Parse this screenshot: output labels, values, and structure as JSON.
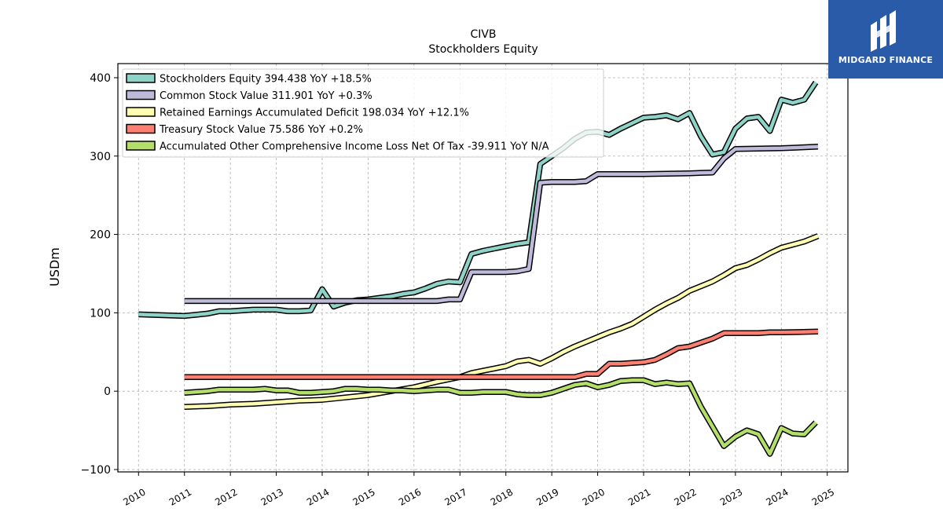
{
  "logo": {
    "text": "MIDGARD FINANCE"
  },
  "chart_data": {
    "type": "line",
    "title": "CIVB",
    "subtitle": "Stockholders  Equity",
    "xlabel": "",
    "ylabel": "USDm",
    "xlim": [
      2009.55,
      2025.45
    ],
    "ylim": [
      -103,
      418
    ],
    "yticks": [
      -100,
      0,
      100,
      200,
      300,
      400
    ],
    "xticks": [
      "2010",
      "2011",
      "2012",
      "2013",
      "2014",
      "2015",
      "2016",
      "2017",
      "2018",
      "2019",
      "2020",
      "2021",
      "2022",
      "2023",
      "2024",
      "2025"
    ],
    "grid": true,
    "legend_position": "top-left",
    "series": [
      {
        "name": "Stockholders Equity  394.438 YoY +18.5%",
        "color": "#8dd3c7",
        "points": [
          [
            2010.0,
            98
          ],
          [
            2011.0,
            96
          ],
          [
            2011.5,
            99
          ],
          [
            2011.75,
            102
          ],
          [
            2012.0,
            102
          ],
          [
            2012.5,
            104
          ],
          [
            2013.0,
            104
          ],
          [
            2013.25,
            102
          ],
          [
            2013.5,
            102
          ],
          [
            2013.75,
            103
          ],
          [
            2014.0,
            130
          ],
          [
            2014.25,
            108
          ],
          [
            2014.5,
            113
          ],
          [
            2014.75,
            116
          ],
          [
            2015.0,
            117
          ],
          [
            2015.25,
            119
          ],
          [
            2015.5,
            121
          ],
          [
            2015.75,
            124
          ],
          [
            2016.0,
            126
          ],
          [
            2016.25,
            131
          ],
          [
            2016.5,
            137
          ],
          [
            2016.75,
            140
          ],
          [
            2017.0,
            139
          ],
          [
            2017.25,
            175
          ],
          [
            2017.5,
            179
          ],
          [
            2017.75,
            182
          ],
          [
            2018.0,
            185
          ],
          [
            2018.25,
            188
          ],
          [
            2018.5,
            190
          ],
          [
            2018.75,
            290
          ],
          [
            2019.0,
            300
          ],
          [
            2019.25,
            310
          ],
          [
            2019.5,
            322
          ],
          [
            2019.75,
            330
          ],
          [
            2020.0,
            331
          ],
          [
            2020.25,
            327
          ],
          [
            2020.5,
            335
          ],
          [
            2020.75,
            342
          ],
          [
            2021.0,
            349
          ],
          [
            2021.25,
            350
          ],
          [
            2021.5,
            352
          ],
          [
            2021.75,
            347
          ],
          [
            2022.0,
            355
          ],
          [
            2022.25,
            325
          ],
          [
            2022.5,
            302
          ],
          [
            2022.75,
            305
          ],
          [
            2023.0,
            335
          ],
          [
            2023.25,
            348
          ],
          [
            2023.5,
            350
          ],
          [
            2023.75,
            332
          ],
          [
            2024.0,
            372
          ],
          [
            2024.25,
            368
          ],
          [
            2024.5,
            372
          ],
          [
            2024.75,
            394
          ]
        ]
      },
      {
        "name": "Common Stock Value  311.901 YoY +0.3%",
        "color": "#bebada",
        "points": [
          [
            2011.0,
            115
          ],
          [
            2012.0,
            115
          ],
          [
            2013.0,
            115
          ],
          [
            2014.0,
            115
          ],
          [
            2015.0,
            115
          ],
          [
            2016.0,
            115
          ],
          [
            2016.5,
            115
          ],
          [
            2016.75,
            117
          ],
          [
            2017.0,
            117
          ],
          [
            2017.25,
            152
          ],
          [
            2018.0,
            152
          ],
          [
            2018.25,
            153
          ],
          [
            2018.5,
            156
          ],
          [
            2018.75,
            266
          ],
          [
            2019.0,
            267
          ],
          [
            2019.5,
            267
          ],
          [
            2019.75,
            268
          ],
          [
            2020.0,
            277
          ],
          [
            2021.0,
            277
          ],
          [
            2022.0,
            278
          ],
          [
            2022.5,
            279
          ],
          [
            2022.75,
            297
          ],
          [
            2023.0,
            309
          ],
          [
            2024.0,
            310
          ],
          [
            2024.8,
            312
          ]
        ]
      },
      {
        "name": "Retained Earnings Accumulated Deficit  198.034 YoY +12.1%",
        "color": "#ffffb3",
        "points": [
          [
            2011.0,
            -20
          ],
          [
            2011.5,
            -19
          ],
          [
            2012.0,
            -17
          ],
          [
            2012.5,
            -16
          ],
          [
            2013.0,
            -14
          ],
          [
            2013.5,
            -12
          ],
          [
            2014.0,
            -11
          ],
          [
            2014.5,
            -8
          ],
          [
            2015.0,
            -5
          ],
          [
            2015.5,
            0
          ],
          [
            2016.0,
            5
          ],
          [
            2016.5,
            12
          ],
          [
            2017.0,
            18
          ],
          [
            2017.25,
            23
          ],
          [
            2017.5,
            26
          ],
          [
            2017.75,
            29
          ],
          [
            2018.0,
            32
          ],
          [
            2018.25,
            38
          ],
          [
            2018.5,
            40
          ],
          [
            2018.75,
            35
          ],
          [
            2019.0,
            42
          ],
          [
            2019.25,
            50
          ],
          [
            2019.5,
            57
          ],
          [
            2019.75,
            63
          ],
          [
            2020.0,
            69
          ],
          [
            2020.25,
            75
          ],
          [
            2020.5,
            80
          ],
          [
            2020.75,
            86
          ],
          [
            2021.0,
            95
          ],
          [
            2021.25,
            104
          ],
          [
            2021.5,
            112
          ],
          [
            2021.75,
            119
          ],
          [
            2022.0,
            128
          ],
          [
            2022.25,
            134
          ],
          [
            2022.5,
            140
          ],
          [
            2022.75,
            148
          ],
          [
            2023.0,
            157
          ],
          [
            2023.25,
            161
          ],
          [
            2023.5,
            168
          ],
          [
            2023.75,
            176
          ],
          [
            2024.0,
            183
          ],
          [
            2024.25,
            187
          ],
          [
            2024.5,
            191
          ],
          [
            2024.8,
            198
          ]
        ]
      },
      {
        "name": "Treasury Stock Value  75.586 YoY +0.2%",
        "color": "#fb8072",
        "points": [
          [
            2011.0,
            18
          ],
          [
            2012.0,
            18
          ],
          [
            2013.0,
            18
          ],
          [
            2014.0,
            18
          ],
          [
            2015.0,
            18
          ],
          [
            2016.0,
            18
          ],
          [
            2017.0,
            18
          ],
          [
            2018.0,
            18
          ],
          [
            2019.0,
            18
          ],
          [
            2019.5,
            18
          ],
          [
            2019.75,
            22
          ],
          [
            2020.0,
            22
          ],
          [
            2020.25,
            35
          ],
          [
            2020.5,
            35
          ],
          [
            2020.75,
            36
          ],
          [
            2021.0,
            37
          ],
          [
            2021.25,
            40
          ],
          [
            2021.5,
            47
          ],
          [
            2021.75,
            55
          ],
          [
            2022.0,
            57
          ],
          [
            2022.25,
            62
          ],
          [
            2022.5,
            67
          ],
          [
            2022.75,
            74
          ],
          [
            2023.0,
            74
          ],
          [
            2023.5,
            74
          ],
          [
            2023.75,
            75
          ],
          [
            2024.0,
            75
          ],
          [
            2024.8,
            76
          ]
        ]
      },
      {
        "name": "Accumulated Other Comprehensive Income Loss Net Of Tax  -39.911 YoY N/A",
        "color": "#b3de69",
        "points": [
          [
            2011.0,
            -2
          ],
          [
            2011.5,
            0
          ],
          [
            2011.75,
            2
          ],
          [
            2012.0,
            2
          ],
          [
            2012.5,
            2
          ],
          [
            2012.75,
            3
          ],
          [
            2013.0,
            1
          ],
          [
            2013.25,
            1
          ],
          [
            2013.5,
            -2
          ],
          [
            2013.75,
            -2
          ],
          [
            2014.0,
            -1
          ],
          [
            2014.25,
            0
          ],
          [
            2014.5,
            3
          ],
          [
            2014.75,
            3
          ],
          [
            2015.0,
            2
          ],
          [
            2015.25,
            2
          ],
          [
            2015.5,
            1
          ],
          [
            2015.75,
            1
          ],
          [
            2016.0,
            0
          ],
          [
            2016.25,
            1
          ],
          [
            2016.5,
            2
          ],
          [
            2016.75,
            2
          ],
          [
            2017.0,
            -2
          ],
          [
            2017.25,
            -2
          ],
          [
            2017.5,
            -1
          ],
          [
            2017.75,
            -1
          ],
          [
            2018.0,
            -1
          ],
          [
            2018.25,
            -4
          ],
          [
            2018.5,
            -5
          ],
          [
            2018.75,
            -5
          ],
          [
            2019.0,
            -2
          ],
          [
            2019.25,
            3
          ],
          [
            2019.5,
            8
          ],
          [
            2019.75,
            10
          ],
          [
            2020.0,
            5
          ],
          [
            2020.25,
            8
          ],
          [
            2020.5,
            13
          ],
          [
            2020.75,
            14
          ],
          [
            2021.0,
            14
          ],
          [
            2021.25,
            9
          ],
          [
            2021.5,
            11
          ],
          [
            2021.75,
            9
          ],
          [
            2022.0,
            10
          ],
          [
            2022.25,
            -20
          ],
          [
            2022.5,
            -45
          ],
          [
            2022.75,
            -70
          ],
          [
            2023.0,
            -58
          ],
          [
            2023.25,
            -50
          ],
          [
            2023.5,
            -55
          ],
          [
            2023.75,
            -80
          ],
          [
            2024.0,
            -47
          ],
          [
            2024.25,
            -54
          ],
          [
            2024.5,
            -55
          ],
          [
            2024.75,
            -40
          ]
        ]
      }
    ]
  }
}
